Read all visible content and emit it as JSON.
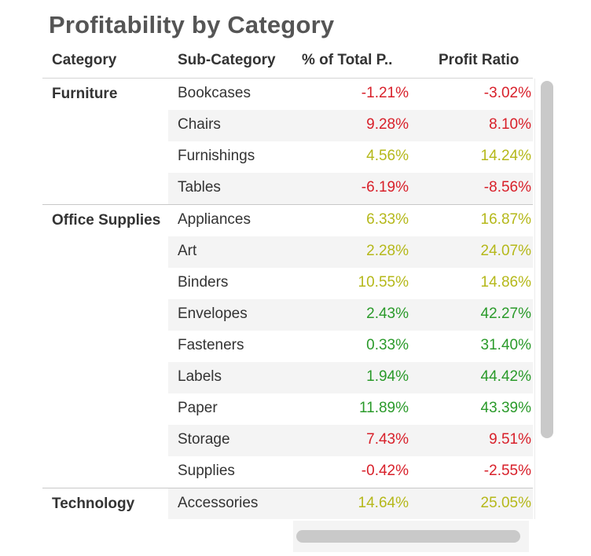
{
  "title": "Profitability by Category",
  "columns": {
    "category": "Category",
    "sub_category": "Sub-Category",
    "pct_total": "% of Total P..",
    "profit_ratio": "Profit Ratio"
  },
  "colors": {
    "negative": "#d8202a",
    "moderate": "#b5b81a",
    "high": "#2a9a2a"
  },
  "chart_data": {
    "type": "table",
    "title": "Profitability by Category",
    "columns": [
      "Category",
      "Sub-Category",
      "% of Total P..",
      "Profit Ratio"
    ],
    "groups": [
      {
        "category": "Furniture",
        "rows": [
          {
            "sub": "Bookcases",
            "pct": "-1.21%",
            "ratio": "-3.02%",
            "pct_value": -1.21,
            "ratio_value": -3.02,
            "pct_color": "negative",
            "ratio_color": "negative"
          },
          {
            "sub": "Chairs",
            "pct": "9.28%",
            "ratio": "8.10%",
            "pct_value": 9.28,
            "ratio_value": 8.1,
            "pct_color": "negative",
            "ratio_color": "negative"
          },
          {
            "sub": "Furnishings",
            "pct": "4.56%",
            "ratio": "14.24%",
            "pct_value": 4.56,
            "ratio_value": 14.24,
            "pct_color": "moderate",
            "ratio_color": "moderate"
          },
          {
            "sub": "Tables",
            "pct": "-6.19%",
            "ratio": "-8.56%",
            "pct_value": -6.19,
            "ratio_value": -8.56,
            "pct_color": "negative",
            "ratio_color": "negative"
          }
        ]
      },
      {
        "category": "Office Supplies",
        "rows": [
          {
            "sub": "Appliances",
            "pct": "6.33%",
            "ratio": "16.87%",
            "pct_value": 6.33,
            "ratio_value": 16.87,
            "pct_color": "moderate",
            "ratio_color": "moderate"
          },
          {
            "sub": "Art",
            "pct": "2.28%",
            "ratio": "24.07%",
            "pct_value": 2.28,
            "ratio_value": 24.07,
            "pct_color": "moderate",
            "ratio_color": "moderate"
          },
          {
            "sub": "Binders",
            "pct": "10.55%",
            "ratio": "14.86%",
            "pct_value": 10.55,
            "ratio_value": 14.86,
            "pct_color": "moderate",
            "ratio_color": "moderate"
          },
          {
            "sub": "Envelopes",
            "pct": "2.43%",
            "ratio": "42.27%",
            "pct_value": 2.43,
            "ratio_value": 42.27,
            "pct_color": "high",
            "ratio_color": "high"
          },
          {
            "sub": "Fasteners",
            "pct": "0.33%",
            "ratio": "31.40%",
            "pct_value": 0.33,
            "ratio_value": 31.4,
            "pct_color": "high",
            "ratio_color": "high"
          },
          {
            "sub": "Labels",
            "pct": "1.94%",
            "ratio": "44.42%",
            "pct_value": 1.94,
            "ratio_value": 44.42,
            "pct_color": "high",
            "ratio_color": "high"
          },
          {
            "sub": "Paper",
            "pct": "11.89%",
            "ratio": "43.39%",
            "pct_value": 11.89,
            "ratio_value": 43.39,
            "pct_color": "high",
            "ratio_color": "high"
          },
          {
            "sub": "Storage",
            "pct": "7.43%",
            "ratio": "9.51%",
            "pct_value": 7.43,
            "ratio_value": 9.51,
            "pct_color": "negative",
            "ratio_color": "negative"
          },
          {
            "sub": "Supplies",
            "pct": "-0.42%",
            "ratio": "-2.55%",
            "pct_value": -0.42,
            "ratio_value": -2.55,
            "pct_color": "negative",
            "ratio_color": "negative"
          }
        ]
      },
      {
        "category": "Technology",
        "rows": [
          {
            "sub": "Accessories",
            "pct": "14.64%",
            "ratio": "25.05%",
            "pct_value": 14.64,
            "ratio_value": 25.05,
            "pct_color": "moderate",
            "ratio_color": "moderate"
          }
        ]
      }
    ]
  },
  "scrollbars": {
    "vertical": "visible",
    "horizontal": "visible"
  }
}
